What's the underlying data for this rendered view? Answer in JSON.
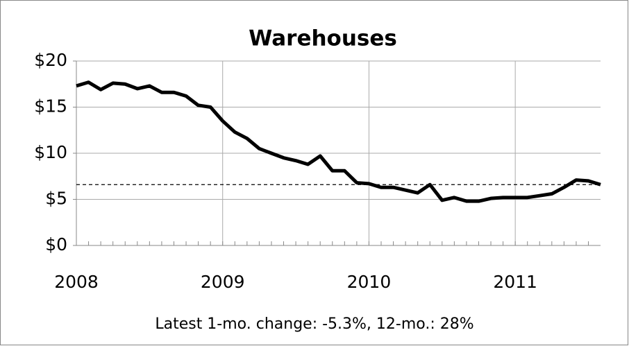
{
  "chart_data": {
    "type": "line",
    "title": "Warehouses",
    "annotation": "Latest 1-mo. change: -5.3%, 12-mo.: 28%",
    "x": [
      2008,
      2008.083,
      2008.167,
      2008.25,
      2008.333,
      2008.417,
      2008.5,
      2008.583,
      2008.667,
      2008.75,
      2008.833,
      2008.917,
      2009,
      2009.083,
      2009.167,
      2009.25,
      2009.333,
      2009.417,
      2009.5,
      2009.583,
      2009.667,
      2009.75,
      2009.833,
      2009.917,
      2010,
      2010.083,
      2010.167,
      2010.25,
      2010.333,
      2010.417,
      2010.5,
      2010.583,
      2010.667,
      2010.75,
      2010.833,
      2010.917,
      2011,
      2011.083,
      2011.167,
      2011.25,
      2011.333,
      2011.417,
      2011.5,
      2011.583
    ],
    "series": [
      {
        "name": "Warehouses",
        "color": "#000000",
        "values": [
          17.3,
          17.7,
          16.9,
          17.6,
          17.5,
          17.0,
          17.3,
          16.6,
          16.6,
          16.2,
          15.2,
          15.0,
          13.5,
          12.3,
          11.6,
          10.5,
          10.0,
          9.5,
          9.2,
          8.8,
          9.7,
          8.1,
          8.1,
          6.8,
          6.7,
          6.3,
          6.3,
          6.0,
          5.7,
          6.6,
          4.9,
          5.2,
          4.8,
          4.8,
          5.1,
          5.2,
          5.2,
          5.2,
          5.4,
          5.6,
          6.3,
          7.1,
          7.0,
          6.6
        ]
      }
    ],
    "reference_line": 6.6,
    "xlim": [
      2008,
      2011.583
    ],
    "xticks": [
      2008,
      2009,
      2010,
      2011
    ],
    "ylim": [
      0,
      20
    ],
    "yticks": [
      {
        "value": 0,
        "label": "$0"
      },
      {
        "value": 5,
        "label": "$5"
      },
      {
        "value": 10,
        "label": "$10"
      },
      {
        "value": 15,
        "label": "$15"
      },
      {
        "value": 20,
        "label": "$20"
      }
    ],
    "grid": true
  }
}
